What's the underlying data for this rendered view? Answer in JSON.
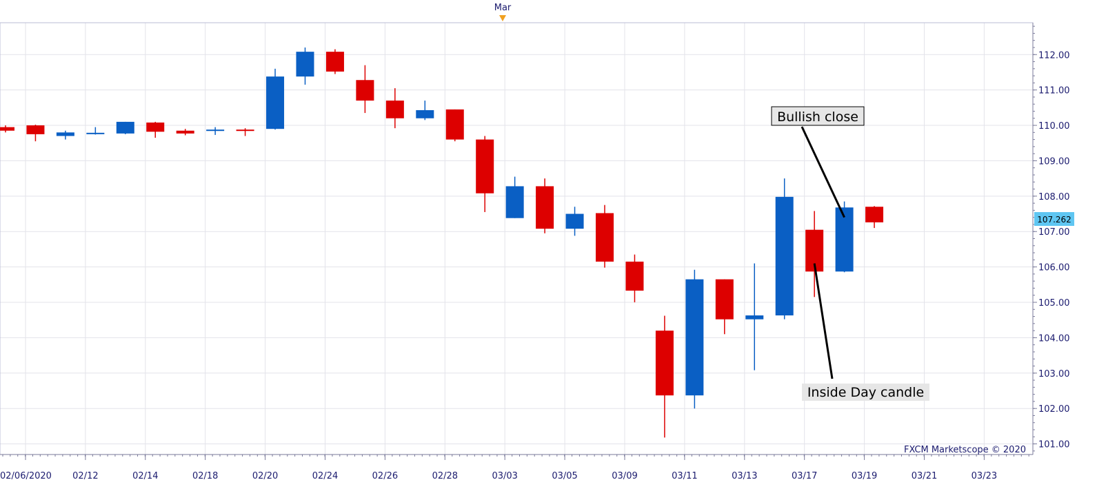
{
  "chart_data": {
    "type": "candlestick",
    "title": "",
    "watermark": "FXCM Marketscope © 2020",
    "month_marker": "Mar",
    "ylim": [
      100.7,
      112.9
    ],
    "y_ticks": [
      "101.00",
      "102.00",
      "103.00",
      "104.00",
      "105.00",
      "106.00",
      "107.00",
      "108.00",
      "109.00",
      "110.00",
      "111.00",
      "112.00"
    ],
    "x_tick_labels": [
      "02/06/2020",
      "02/12",
      "02/14",
      "02/18",
      "02/20",
      "02/24",
      "02/26",
      "02/28",
      "03/03",
      "03/05",
      "03/09",
      "03/11",
      "03/13",
      "03/17",
      "03/19",
      "03/21",
      "03/23"
    ],
    "current_price": "107.262",
    "colors": {
      "bull": "#0a5fc4",
      "bear": "#dd0000",
      "grid": "#e3e3ea",
      "axis_text": "#1a1a6e",
      "price_tag": "#5fc6f2",
      "month_marker": "#f0a020"
    },
    "candles": [
      {
        "date": "02/06",
        "open": 109.95,
        "high": 110.0,
        "low": 109.8,
        "close": 109.85
      },
      {
        "date": "02/07",
        "open": 110.0,
        "high": 110.02,
        "low": 109.55,
        "close": 109.75
      },
      {
        "date": "02/10",
        "open": 109.7,
        "high": 109.85,
        "low": 109.6,
        "close": 109.8
      },
      {
        "date": "02/11",
        "open": 109.77,
        "high": 109.95,
        "low": 109.74,
        "close": 109.79
      },
      {
        "date": "02/12",
        "open": 109.77,
        "high": 110.1,
        "low": 109.75,
        "close": 110.1
      },
      {
        "date": "02/13",
        "open": 110.08,
        "high": 110.1,
        "low": 109.65,
        "close": 109.82
      },
      {
        "date": "02/14",
        "open": 109.85,
        "high": 109.9,
        "low": 109.72,
        "close": 109.77
      },
      {
        "date": "02/17",
        "open": 109.85,
        "high": 109.95,
        "low": 109.73,
        "close": 109.88
      },
      {
        "date": "02/18",
        "open": 109.88,
        "high": 109.92,
        "low": 109.7,
        "close": 109.85
      },
      {
        "date": "02/19",
        "open": 109.9,
        "high": 111.6,
        "low": 109.88,
        "close": 111.38
      },
      {
        "date": "02/20",
        "open": 111.38,
        "high": 112.2,
        "low": 111.15,
        "close": 112.08
      },
      {
        "date": "02/21",
        "open": 112.08,
        "high": 112.15,
        "low": 111.45,
        "close": 111.52
      },
      {
        "date": "02/24",
        "open": 111.28,
        "high": 111.7,
        "low": 110.35,
        "close": 110.7
      },
      {
        "date": "02/25",
        "open": 110.7,
        "high": 111.05,
        "low": 109.92,
        "close": 110.2
      },
      {
        "date": "02/26",
        "open": 110.2,
        "high": 110.7,
        "low": 110.15,
        "close": 110.43
      },
      {
        "date": "02/27",
        "open": 110.45,
        "high": 110.45,
        "low": 109.55,
        "close": 109.6
      },
      {
        "date": "02/28",
        "open": 109.6,
        "high": 109.7,
        "low": 107.55,
        "close": 108.08
      },
      {
        "date": "03/02",
        "open": 107.38,
        "high": 108.55,
        "low": 107.38,
        "close": 108.28
      },
      {
        "date": "03/03",
        "open": 108.28,
        "high": 108.5,
        "low": 106.95,
        "close": 107.08
      },
      {
        "date": "03/04",
        "open": 107.08,
        "high": 107.7,
        "low": 106.88,
        "close": 107.5
      },
      {
        "date": "03/05",
        "open": 107.52,
        "high": 107.75,
        "low": 105.98,
        "close": 106.15
      },
      {
        "date": "03/06",
        "open": 106.15,
        "high": 106.35,
        "low": 105.0,
        "close": 105.33
      },
      {
        "date": "03/09",
        "open": 104.2,
        "high": 104.62,
        "low": 101.18,
        "close": 102.37
      },
      {
        "date": "03/10",
        "open": 102.37,
        "high": 105.92,
        "low": 102.0,
        "close": 105.65
      },
      {
        "date": "03/11",
        "open": 105.65,
        "high": 105.65,
        "low": 104.1,
        "close": 104.52
      },
      {
        "date": "03/12",
        "open": 104.52,
        "high": 106.1,
        "low": 103.08,
        "close": 104.63
      },
      {
        "date": "03/13",
        "open": 104.63,
        "high": 108.5,
        "low": 104.52,
        "close": 107.98
      },
      {
        "date": "03/16",
        "open": 107.05,
        "high": 107.58,
        "low": 105.15,
        "close": 105.87
      },
      {
        "date": "03/17",
        "open": 105.87,
        "high": 107.85,
        "low": 105.85,
        "close": 107.68
      },
      {
        "date": "03/18",
        "open": 107.7,
        "high": 107.72,
        "low": 107.1,
        "close": 107.26
      }
    ],
    "annotations": [
      {
        "text": "Bullish close",
        "target": "03/17"
      },
      {
        "text": "Inside Day candle",
        "target": "03/16"
      }
    ]
  }
}
